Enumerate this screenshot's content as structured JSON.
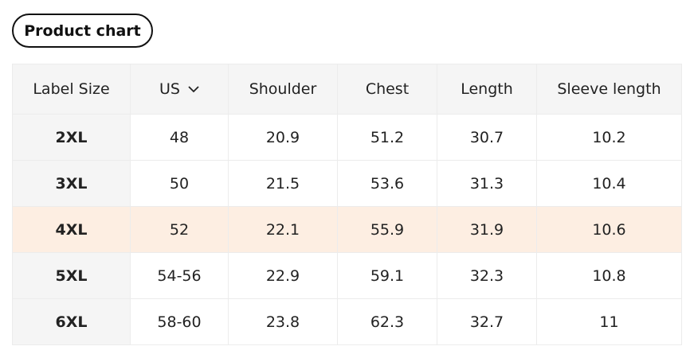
{
  "button": {
    "label": "Product chart"
  },
  "table": {
    "header": [
      "Label Size",
      "US",
      "Shoulder",
      "Chest",
      "Length",
      "Sleeve length"
    ],
    "rows": [
      [
        "2XL",
        "48",
        "20.9",
        "51.2",
        "30.7",
        "10.2"
      ],
      [
        "3XL",
        "50",
        "21.5",
        "53.6",
        "31.3",
        "10.4"
      ],
      [
        "4XL",
        "52",
        "22.1",
        "55.9",
        "31.9",
        "10.6"
      ],
      [
        "5XL",
        "54-56",
        "22.9",
        "59.1",
        "32.3",
        "10.8"
      ],
      [
        "6XL",
        "58-60",
        "23.8",
        "62.3",
        "32.7",
        "11"
      ]
    ],
    "highlight_row": 2,
    "dropdown_column": 1
  }
}
